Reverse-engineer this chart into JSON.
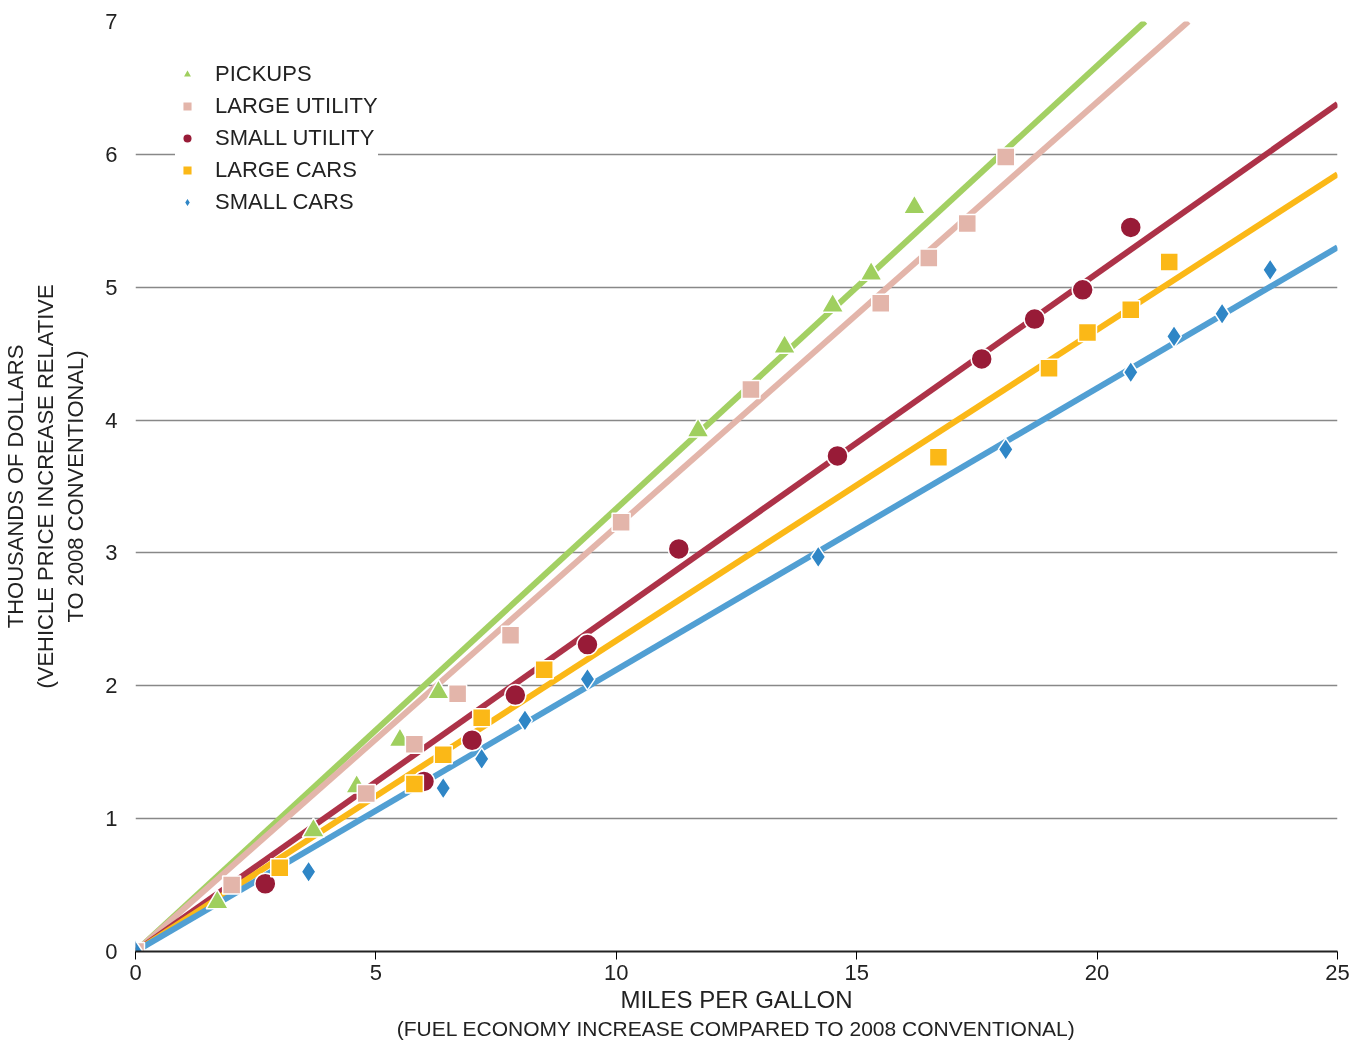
{
  "chart_data": {
    "type": "scatter",
    "xlabel": "MILES PER GALLON\n(FUEL ECONOMY INCREASE COMPARED TO 2008 CONVENTIONAL)",
    "ylabel": "THOUSANDS OF DOLLARS\n(VEHICLE PRICE INCREASE RELATIVE\nTO 2008 CONVENTIONAL)",
    "xlim": [
      0,
      25
    ],
    "ylim": [
      0,
      7
    ],
    "xticks": [
      0,
      5,
      10,
      15,
      20,
      25
    ],
    "yticks": [
      0,
      1,
      2,
      3,
      4,
      5,
      6,
      7
    ],
    "grid": "y",
    "legend": "top left",
    "series": [
      {
        "type": "line",
        "color": "#a3d063",
        "x": [
          0,
          21.0
        ],
        "values": [
          0,
          7
        ]
      },
      {
        "type": "line",
        "color": "#e3b5aa",
        "x": [
          0,
          21.9
        ],
        "values": [
          0,
          7
        ]
      },
      {
        "type": "line",
        "color": "#ad3248",
        "x": [
          0,
          25
        ],
        "values": [
          0,
          6.38
        ]
      },
      {
        "type": "line",
        "color": "#fbb817",
        "x": [
          0,
          25
        ],
        "values": [
          0,
          5.85
        ]
      },
      {
        "type": "line",
        "color": "#519fd3",
        "x": [
          0,
          25
        ],
        "values": [
          0,
          5.3
        ]
      },
      {
        "name": "PICKUPS",
        "marker": "triangle",
        "color": "#9fcf5e",
        "x": [
          1.7,
          3.7,
          4.6,
          5.5,
          6.3,
          11.7,
          13.5,
          14.5,
          15.3,
          16.2
        ],
        "values": [
          0.37,
          0.91,
          1.24,
          1.59,
          1.95,
          3.92,
          4.55,
          4.86,
          5.1,
          5.6
        ]
      },
      {
        "name": "LARGE UTILITY",
        "marker": "square",
        "color": "#e3b5aa",
        "x": [
          0,
          2.0,
          4.8,
          5.8,
          6.7,
          7.8,
          10.1,
          12.8,
          15.5,
          16.5,
          17.3,
          18.1
        ],
        "values": [
          0,
          0.5,
          1.19,
          1.56,
          1.94,
          2.38,
          3.23,
          4.23,
          4.88,
          5.22,
          5.48,
          5.98
        ]
      },
      {
        "name": "SMALL UTILITY",
        "marker": "circle",
        "color": "#981b37",
        "x": [
          2.7,
          6.0,
          7.0,
          7.9,
          9.4,
          11.3,
          14.6,
          17.6,
          18.7,
          19.7,
          20.7
        ],
        "values": [
          0.51,
          1.28,
          1.59,
          1.93,
          2.31,
          3.03,
          3.73,
          4.46,
          4.76,
          4.98,
          5.45
        ]
      },
      {
        "name": "LARGE CARS",
        "marker": "square",
        "color": "#fbb817",
        "x": [
          3.0,
          5.8,
          6.4,
          7.2,
          8.5,
          16.7,
          19.0,
          19.8,
          20.7,
          21.5
        ],
        "values": [
          0.63,
          1.26,
          1.48,
          1.76,
          2.12,
          3.72,
          4.39,
          4.66,
          4.83,
          5.19
        ]
      },
      {
        "name": "SMALL CARS",
        "marker": "diamond",
        "color": "#2f86c6",
        "x": [
          0,
          3.6,
          6.4,
          7.2,
          8.1,
          9.4,
          14.2,
          18.1,
          20.7,
          21.6,
          22.6,
          23.6
        ],
        "values": [
          0,
          0.6,
          1.23,
          1.45,
          1.74,
          2.05,
          2.97,
          3.78,
          4.36,
          4.63,
          4.8,
          5.13
        ]
      }
    ]
  }
}
